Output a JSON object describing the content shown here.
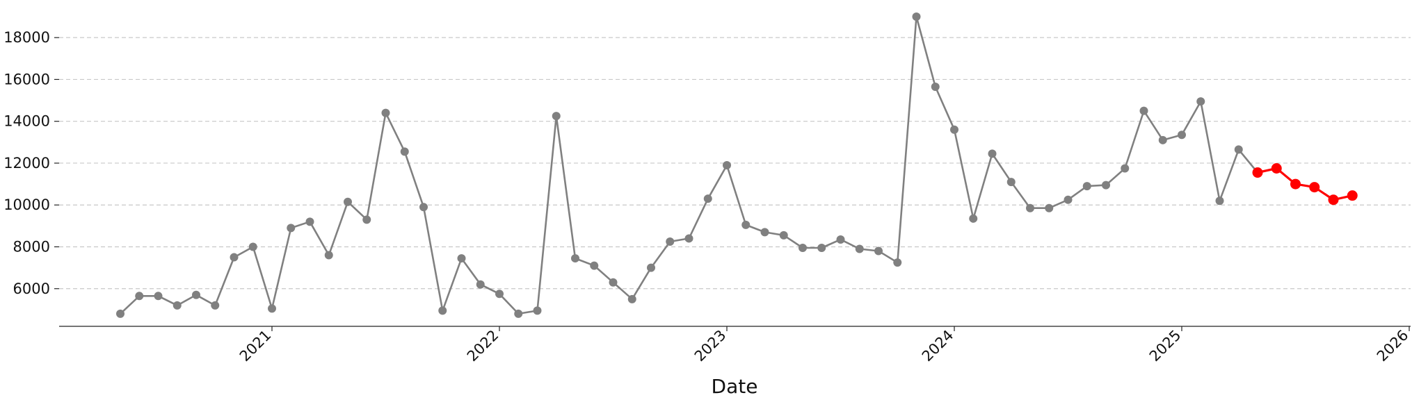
{
  "chart_data": {
    "type": "line",
    "title": "",
    "xlabel": "Date",
    "ylabel": "",
    "x_range": [
      "2020-01-01",
      "2026-01-01"
    ],
    "ylim": [
      4200,
      19200
    ],
    "yticks": [
      6000,
      8000,
      10000,
      12000,
      14000,
      16000,
      18000
    ],
    "ytick_labels": [
      "6000",
      "8000",
      "10000",
      "12000",
      "14000",
      "16000",
      "18000"
    ],
    "xticks": [
      "2021-01-01",
      "2022-01-01",
      "2023-01-01",
      "2024-01-01",
      "2025-01-01",
      "2026-01-01"
    ],
    "xtick_labels": [
      "2021",
      "2022",
      "2023",
      "2024",
      "2025",
      "2026"
    ],
    "grid": {
      "y": true,
      "x": false
    },
    "series": [
      {
        "color": "#808080",
        "x": [
          "2020-05",
          "2020-06",
          "2020-07",
          "2020-08",
          "2020-09",
          "2020-10",
          "2020-11",
          "2020-12",
          "2021-01",
          "2021-02",
          "2021-03",
          "2021-04",
          "2021-05",
          "2021-06",
          "2021-07",
          "2021-08",
          "2021-09",
          "2021-10",
          "2021-11",
          "2021-12",
          "2022-01",
          "2022-02",
          "2022-03",
          "2022-04",
          "2022-05",
          "2022-06",
          "2022-07",
          "2022-08",
          "2022-09",
          "2022-10",
          "2022-11",
          "2022-12",
          "2023-01",
          "2023-02",
          "2023-03",
          "2023-04",
          "2023-05",
          "2023-06",
          "2023-07",
          "2023-08",
          "2023-09",
          "2023-10",
          "2023-11",
          "2023-12",
          "2024-01",
          "2024-02",
          "2024-03",
          "2024-04",
          "2024-05",
          "2024-06",
          "2024-07",
          "2024-08",
          "2024-09",
          "2024-10",
          "2024-11",
          "2024-12",
          "2025-01",
          "2025-02",
          "2025-03",
          "2025-04",
          "2025-05"
        ],
        "y": [
          4800,
          5650,
          5650,
          5200,
          5700,
          5200,
          7500,
          8000,
          5050,
          8900,
          9200,
          7600,
          10150,
          9300,
          14400,
          12550,
          9900,
          4950,
          7450,
          6200,
          5750,
          4800,
          4950,
          14250,
          7450,
          7100,
          6300,
          5500,
          7000,
          8250,
          8400,
          10300,
          11900,
          9050,
          8700,
          8550,
          7950,
          7950,
          8350,
          7900,
          7800,
          7250,
          19000,
          15650,
          13600,
          9350,
          12450,
          11100,
          9850,
          9850,
          10250,
          10900,
          10950,
          11750,
          14500,
          13100,
          13350,
          14950,
          10200,
          12650,
          11550
        ]
      },
      {
        "color": "#ff0000",
        "x": [
          "2025-05",
          "2025-06",
          "2025-07",
          "2025-08",
          "2025-09",
          "2025-10"
        ],
        "y": [
          11550,
          11750,
          11000,
          10850,
          10250,
          10450
        ]
      }
    ]
  }
}
